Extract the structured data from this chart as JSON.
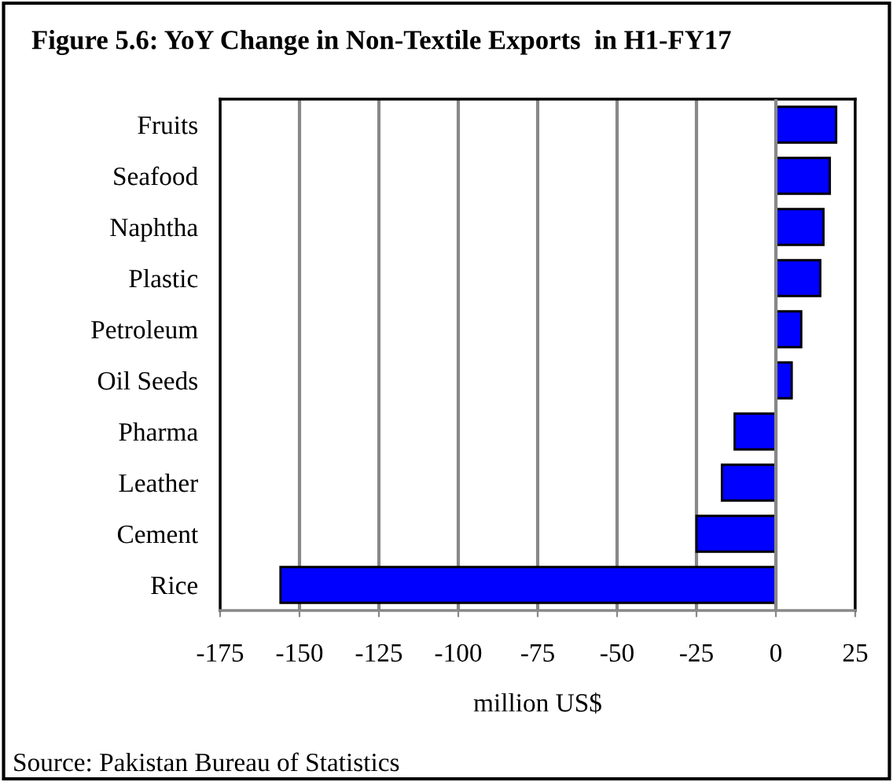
{
  "chart_data": {
    "type": "bar",
    "orientation": "horizontal",
    "title": "Figure 5.6: YoY Change in Non-Textile Exports  in H1-FY17",
    "categories": [
      "Fruits",
      "Seafood",
      "Naphtha",
      "Plastic",
      "Petroleum",
      "Oil Seeds",
      "Pharma",
      "Leather",
      "Cement",
      "Rice"
    ],
    "values": [
      19,
      17,
      15,
      14,
      8,
      5,
      -13,
      -17,
      -25,
      -156
    ],
    "color": "#0000ff",
    "xlim": [
      -175,
      25
    ],
    "xticks": [
      -175,
      -150,
      -125,
      -100,
      -75,
      -50,
      -25,
      0,
      25
    ],
    "xlabel": "million US$",
    "grid": "x",
    "annotations": [
      "Source: Pakistan Bureau of Statistics"
    ]
  }
}
